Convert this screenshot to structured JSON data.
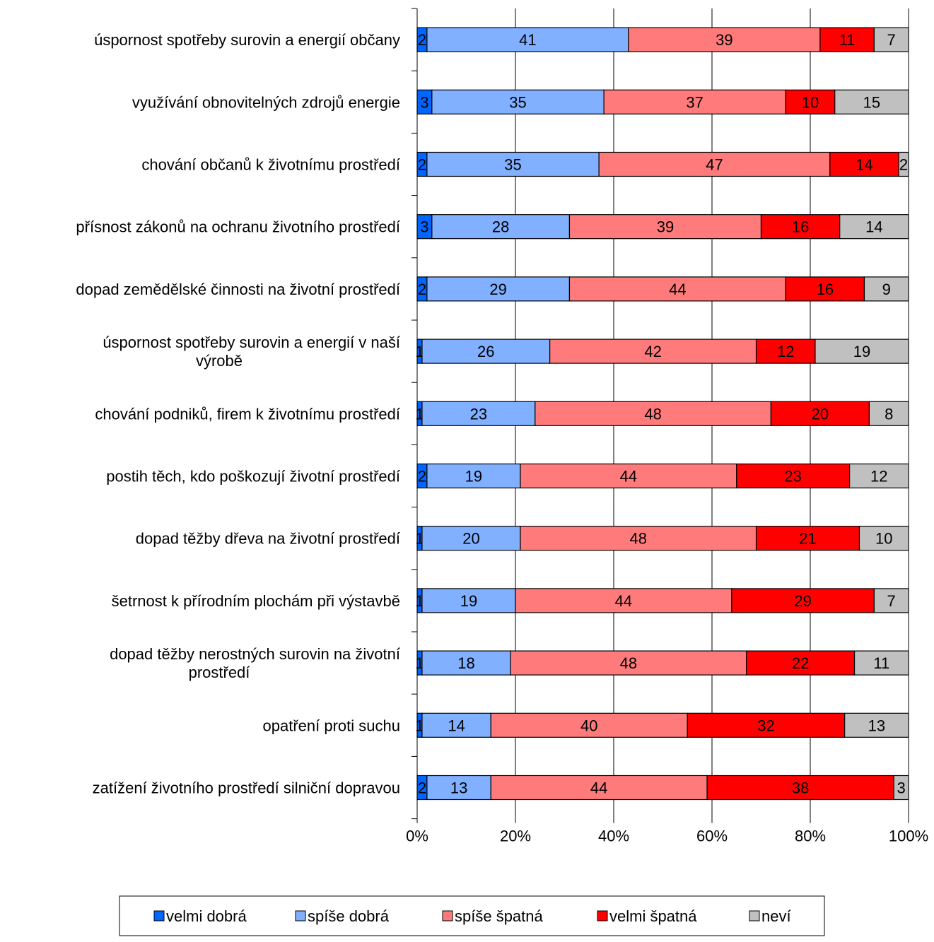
{
  "chart_data": {
    "type": "bar",
    "orientation": "horizontal",
    "stacked": "percent",
    "categories": [
      [
        "úspornost spotřeby surovin a energií občany"
      ],
      [
        "využívání obnovitelných zdrojů energie"
      ],
      [
        "chování občanů k životnímu prostředí"
      ],
      [
        "přísnost zákonů na ochranu životního prostředí"
      ],
      [
        "dopad zemědělské činnosti na životní prostředí"
      ],
      [
        "úspornost spotřeby surovin a energií v naší",
        "výrobě"
      ],
      [
        "chování podniků, firem k životnímu prostředí"
      ],
      [
        "postih těch, kdo poškozují životní prostředí"
      ],
      [
        "dopad těžby dřeva na životní prostředí"
      ],
      [
        "šetrnost k přírodním plochám při výstavbě"
      ],
      [
        "dopad těžby nerostných surovin na životní",
        "prostředí"
      ],
      [
        "opatření proti suchu"
      ],
      [
        "zatížení životního prostředí silniční dopravou"
      ]
    ],
    "series": [
      {
        "name": "velmi dobrá",
        "color": "#0066ff",
        "values": [
          2,
          3,
          2,
          3,
          2,
          1,
          1,
          2,
          1,
          1,
          1,
          1,
          2
        ]
      },
      {
        "name": "spíše dobrá",
        "color": "#80b0ff",
        "values": [
          41,
          35,
          35,
          28,
          29,
          26,
          23,
          19,
          20,
          19,
          18,
          14,
          13
        ]
      },
      {
        "name": "spíše špatná",
        "color": "#ff7b7b",
        "values": [
          39,
          37,
          47,
          39,
          44,
          42,
          48,
          44,
          48,
          44,
          48,
          40,
          44
        ]
      },
      {
        "name": "velmi špatná",
        "color": "#ff0000",
        "values": [
          11,
          10,
          14,
          16,
          16,
          12,
          20,
          23,
          21,
          29,
          22,
          32,
          38
        ]
      },
      {
        "name": "neví",
        "color": "#c0c0c0",
        "values": [
          7,
          15,
          2,
          14,
          9,
          19,
          8,
          12,
          10,
          7,
          11,
          13,
          3
        ]
      }
    ],
    "xticks": [
      "0%",
      "20%",
      "40%",
      "60%",
      "80%",
      "100%"
    ],
    "xlim": [
      0,
      100
    ],
    "grid": true,
    "legend_position": "bottom"
  }
}
